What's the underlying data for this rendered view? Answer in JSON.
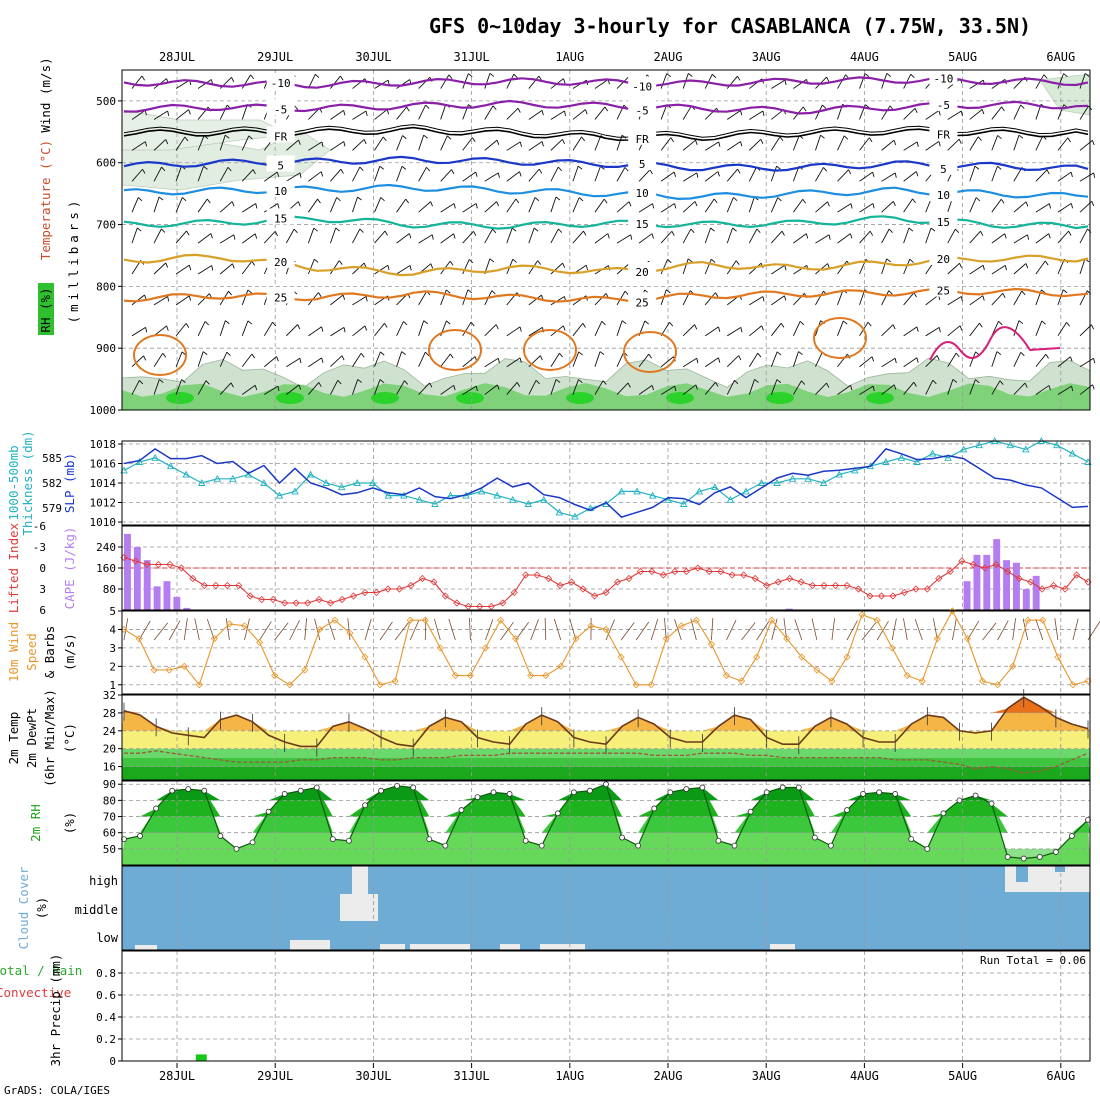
{
  "title": "GFS 0~10day 3-hourly for CASABLANCA (7.75W, 33.5N)",
  "footer": "GrADS: COLA/IGES",
  "colors": {
    "frame": "#000000",
    "grid": "#999999",
    "slp": "#1a37c8",
    "thickness": "#22b2c0",
    "cape": "#b57ef0",
    "lifted": "#e03a3a",
    "wind10": "#e8962a",
    "barb": "#7a4a30",
    "temp_fill": "#f6b646",
    "temp_line": "#6b3a1a",
    "dew_line": "#9a5a3a",
    "rh_dark": "#0aa21e",
    "rh_light": "#66d85a",
    "cloud": "#6eabd5",
    "cloud_clear": "#ececec",
    "precip": "#18c818"
  },
  "chart_data": [
    {
      "id": "upper-air",
      "type": "heatmap",
      "xlabel": "",
      "ylabel": "(millibars)",
      "legend_labels": [
        "Wind (m/s)",
        "Temperature (°C)",
        "RH (%)"
      ],
      "ylim": [
        1000,
        450
      ],
      "yticks": [
        500,
        600,
        700,
        800,
        900,
        1000
      ],
      "isotherms": [
        {
          "label": "-10",
          "color": "#8a1fa8",
          "levels": [
            470,
            472,
            474,
            470,
            468,
            470,
            472,
            468,
            466,
            468,
            470
          ]
        },
        {
          "label": "-5",
          "color": "#8a1fa8",
          "levels": [
            513,
            510,
            512,
            508,
            505,
            508,
            512,
            516,
            510,
            506,
            508
          ]
        },
        {
          "label": "FR",
          "color": "#000000",
          "levels": [
            552,
            552,
            551,
            548,
            553,
            559,
            559,
            553,
            550,
            552,
            554
          ]
        },
        {
          "label": "5",
          "color": "#1a37c8",
          "levels": [
            605,
            600,
            598,
            595,
            598,
            602,
            608,
            608,
            602,
            605,
            610
          ]
        },
        {
          "label": "10",
          "color": "#1e8fe0",
          "levels": [
            648,
            645,
            643,
            640,
            645,
            650,
            655,
            650,
            645,
            650,
            655
          ]
        },
        {
          "label": "15",
          "color": "#14b49a",
          "levels": [
            700,
            697,
            690,
            700,
            702,
            698,
            700,
            698,
            690,
            700,
            703
          ]
        },
        {
          "label": "20",
          "color": "#d8a028",
          "levels": [
            758,
            752,
            770,
            778,
            770,
            776,
            765,
            770,
            762,
            755,
            755
          ]
        },
        {
          "label": "25",
          "color": "#e07820",
          "levels": [
            820,
            815,
            818,
            812,
            818,
            822,
            815,
            812,
            810,
            808,
            812
          ]
        }
      ],
      "tick_labels": [
        "28JUL",
        "29JUL",
        "30JUL",
        "31JUL",
        "1AUG",
        "2AUG",
        "3AUG",
        "4AUG",
        "5AUG",
        "6AUG"
      ]
    },
    {
      "id": "slp-thickness",
      "type": "line",
      "ylabel": "SLP (mb)",
      "ylabel2": "1000-500mb Thickness (dm)",
      "ylim": [
        1010,
        1018
      ],
      "yticks": [
        1010,
        1012,
        1014,
        1016,
        1018
      ],
      "ylim2": [
        577,
        587
      ],
      "yticks2": [
        579,
        582,
        585
      ],
      "series": [
        {
          "name": "SLP (mb)",
          "axis": "left",
          "values": [
            1016.0,
            1016.3,
            1017.5,
            1016.5,
            1016.5,
            1016.8,
            1016.0,
            1016.2,
            1015.0,
            1015.8,
            1014.0,
            1015.5,
            1014.0,
            1013.5,
            1012.8,
            1013.0,
            1013.5,
            1013.0,
            1012.8,
            1013.5,
            1012.6,
            1012.4,
            1012.8,
            1013.5,
            1014.5,
            1013.6,
            1014.0,
            1012.8,
            1012.5,
            1011.8,
            1011.2,
            1012.0,
            1010.5,
            1011.0,
            1011.5,
            1012.5,
            1012.4,
            1011.8,
            1013.0,
            1013.6,
            1012.5,
            1013.5,
            1014.5,
            1015.0,
            1014.8,
            1015.2,
            1015.3,
            1015.5,
            1015.7,
            1017.5,
            1017.0,
            1016.4,
            1016.5,
            1016.8,
            1016.5,
            1015.5,
            1014.5,
            1014.3,
            1013.8,
            1013.5,
            1012.5,
            1011.5,
            1011.6
          ]
        },
        {
          "name": "1000-500mb Thickness (dm)",
          "axis": "right",
          "values": [
            583.5,
            584.5,
            585.0,
            584.0,
            583.0,
            582.0,
            582.5,
            582.5,
            583.0,
            582.0,
            580.5,
            581.0,
            583.0,
            582.0,
            581.5,
            582.0,
            582.0,
            580.5,
            580.5,
            580.0,
            579.5,
            580.5,
            580.5,
            581.0,
            580.5,
            580.0,
            579.5,
            580.0,
            578.5,
            578.0,
            579.0,
            579.5,
            581.0,
            581.0,
            580.5,
            580.0,
            579.5,
            581.0,
            581.5,
            580.0,
            581.0,
            582.0,
            582.0,
            582.5,
            582.5,
            582.0,
            583.0,
            583.5,
            584.0,
            584.5,
            585.0,
            584.5,
            585.5,
            585.0,
            586.0,
            586.5,
            587.0,
            586.5,
            586.0,
            587.0,
            586.5,
            585.5,
            584.5
          ]
        }
      ]
    },
    {
      "id": "cape-li",
      "type": "bar",
      "ylabel": "CAPE (J/kg)",
      "ylabel2": "Lifted Index",
      "ylim": [
        0,
        320
      ],
      "yticks": [
        80,
        160,
        240
      ],
      "ylim2": [
        6,
        -6
      ],
      "yticks2": [
        6,
        3,
        0,
        -3,
        -6
      ],
      "series": [
        {
          "name": "CAPE (J/kg)",
          "axis": "left",
          "values": [
            290,
            240,
            190,
            90,
            110,
            50,
            8,
            0,
            0,
            0,
            0,
            0,
            0,
            0,
            0,
            0,
            0,
            0,
            0,
            0,
            0,
            0,
            0,
            0,
            0,
            0,
            0,
            0,
            0,
            0,
            0,
            0,
            0,
            0,
            0,
            0,
            0,
            0,
            0,
            0,
            0,
            0,
            0,
            0,
            0,
            0,
            0,
            0,
            0,
            0,
            0,
            0,
            0,
            0,
            0,
            0,
            0,
            0,
            0,
            0,
            0,
            0,
            0,
            0,
            0,
            0,
            0,
            5,
            0,
            0,
            0,
            0,
            0,
            0,
            0,
            0,
            0,
            0,
            0,
            0,
            0,
            0,
            0,
            0,
            0,
            110,
            210,
            210,
            270,
            190,
            180,
            80,
            130,
            0,
            0,
            0,
            0,
            0
          ]
        },
        {
          "name": "Lifted Index",
          "axis": "right",
          "values": [
            -1.5,
            -1.0,
            -0.5,
            -0.5,
            -0.5,
            0.0,
            1.5,
            2.5,
            2.5,
            2.5,
            2.5,
            4.0,
            4.5,
            4.5,
            5.0,
            5.0,
            5.0,
            4.5,
            5.0,
            4.5,
            4.0,
            3.5,
            3.5,
            3.0,
            3.0,
            2.5,
            1.5,
            2.0,
            4.0,
            5.0,
            5.5,
            5.5,
            5.5,
            5.0,
            3.5,
            1.0,
            1.0,
            1.5,
            2.5,
            2.0,
            3.0,
            4.0,
            3.5,
            2.0,
            1.5,
            0.5,
            0.5,
            1.0,
            0.5,
            0.5,
            0.0,
            0.5,
            0.5,
            1.0,
            1.0,
            1.5,
            2.5,
            2.0,
            1.5,
            2.0,
            2.5,
            2.5,
            2.5,
            2.5,
            3.0,
            4.0,
            4.0,
            4.0,
            3.5,
            3.0,
            3.0,
            1.5,
            0.5,
            -1.0,
            -0.5,
            0.0,
            -0.5,
            0.5,
            1.5,
            2.0,
            3.0,
            2.5,
            3.0,
            1.0,
            2.0
          ]
        }
      ]
    },
    {
      "id": "wind10m",
      "type": "line",
      "ylabel": "10m Wind Speed & Barbs (m/s)",
      "ylim": [
        0.5,
        5
      ],
      "yticks": [
        1,
        2,
        3,
        4,
        5
      ],
      "series": [
        {
          "name": "10m Wind Speed (m/s)",
          "values": [
            4.0,
            3.5,
            1.8,
            1.8,
            2.0,
            1.0,
            3.5,
            4.3,
            4.2,
            3.3,
            1.5,
            1.0,
            1.8,
            4.0,
            4.5,
            3.8,
            2.5,
            1.0,
            1.2,
            4.5,
            4.5,
            3.0,
            1.5,
            1.5,
            3.0,
            4.5,
            3.5,
            1.5,
            1.5,
            2.0,
            3.5,
            4.2,
            4.0,
            2.5,
            1.0,
            1.0,
            3.5,
            4.2,
            4.5,
            3.2,
            1.5,
            1.2,
            2.5,
            4.5,
            3.5,
            2.5,
            1.8,
            1.2,
            2.5,
            4.8,
            4.5,
            3.0,
            1.5,
            1.2,
            3.5,
            5.0,
            3.5,
            1.2,
            1.0,
            2.0,
            4.5,
            4.5,
            2.5,
            1.0,
            1.2
          ]
        }
      ]
    },
    {
      "id": "temp-dew",
      "type": "area",
      "ylabel": "2m Temp 2m DewPt (6hr Min/Max) (°C)",
      "ylim": [
        13,
        32
      ],
      "yticks": [
        16,
        20,
        24,
        28,
        32
      ],
      "series": [
        {
          "name": "2m Temp (°C)",
          "values": [
            28.5,
            27.5,
            25.0,
            23.5,
            23.0,
            22.5,
            26.5,
            27.5,
            26.0,
            23.0,
            21.5,
            20.5,
            20.5,
            25.0,
            26.0,
            24.5,
            22.5,
            21.0,
            20.5,
            25.0,
            27.0,
            26.0,
            22.5,
            21.5,
            21.0,
            25.5,
            27.5,
            26.0,
            22.5,
            21.5,
            21.0,
            25.0,
            27.0,
            25.5,
            22.5,
            21.5,
            21.5,
            25.0,
            27.5,
            26.5,
            22.5,
            21.0,
            21.0,
            25.0,
            27.0,
            25.5,
            22.5,
            21.5,
            21.5,
            25.5,
            27.5,
            27.0,
            24.0,
            23.5,
            24.0,
            29.0,
            31.5,
            29.5,
            27.0,
            25.5,
            24.5
          ]
        },
        {
          "name": "2m DewPt (°C)",
          "values": [
            19.0,
            19.0,
            19.5,
            19.0,
            18.5,
            18.0,
            17.5,
            17.0,
            17.0,
            17.0,
            17.0,
            17.5,
            17.5,
            18.0,
            18.0,
            18.0,
            17.5,
            17.5,
            18.0,
            18.0,
            18.0,
            18.5,
            18.5,
            18.5,
            19.0,
            19.0,
            19.0,
            19.0,
            19.0,
            19.0,
            19.0,
            19.0,
            19.0,
            18.5,
            18.5,
            18.5,
            19.0,
            19.0,
            19.0,
            18.5,
            18.5,
            18.0,
            18.0,
            18.0,
            18.0,
            18.0,
            18.0,
            18.0,
            17.5,
            17.5,
            17.5,
            17.0,
            16.5,
            15.5,
            16.0,
            15.5,
            14.5,
            15.0,
            16.0,
            17.5,
            19.0
          ]
        }
      ]
    },
    {
      "id": "rh2m",
      "type": "area",
      "ylabel": "2m RH (%)",
      "ylim": [
        40,
        92
      ],
      "yticks": [
        50,
        60,
        70,
        80,
        90
      ],
      "series": [
        {
          "name": "2m RH (%)",
          "values": [
            56,
            58,
            75,
            86,
            87,
            86,
            58,
            50,
            54,
            73,
            84,
            86,
            88,
            56,
            55,
            77,
            86,
            89,
            88,
            56,
            52,
            74,
            82,
            85,
            84,
            55,
            52,
            72,
            85,
            86,
            90,
            57,
            52,
            75,
            85,
            87,
            88,
            55,
            52,
            73,
            85,
            88,
            88,
            57,
            52,
            74,
            84,
            85,
            84,
            56,
            50,
            72,
            80,
            83,
            78,
            45,
            44,
            45,
            48,
            58,
            68
          ]
        }
      ]
    },
    {
      "id": "cloud-cover",
      "type": "heatmap",
      "ylabel": "Cloud Cover (%)",
      "yticks": [
        "high",
        "middle",
        "low"
      ]
    },
    {
      "id": "precip",
      "type": "bar",
      "ylabel": "3hr Precip (mm)",
      "ylabel2": "Total / Rain Convective",
      "ylim": [
        0,
        1.0
      ],
      "yticks": [
        0,
        0.2,
        0.4,
        0.6,
        0.8
      ],
      "annotation": "Run Total = 0.06",
      "series": [
        {
          "name": "Total",
          "values": [
            0,
            0,
            0,
            0,
            0,
            0.06,
            0,
            0,
            0,
            0,
            0,
            0,
            0,
            0,
            0,
            0,
            0,
            0,
            0,
            0,
            0,
            0,
            0,
            0,
            0,
            0,
            0,
            0,
            0,
            0,
            0,
            0,
            0,
            0,
            0,
            0,
            0,
            0,
            0,
            0,
            0,
            0,
            0,
            0,
            0,
            0,
            0,
            0,
            0,
            0,
            0,
            0,
            0,
            0,
            0,
            0,
            0,
            0,
            0,
            0,
            0,
            0,
            0,
            0,
            0,
            0,
            0,
            0,
            0,
            0,
            0,
            0,
            0,
            0,
            0,
            0,
            0,
            0,
            0,
            0,
            0
          ]
        }
      ]
    }
  ]
}
